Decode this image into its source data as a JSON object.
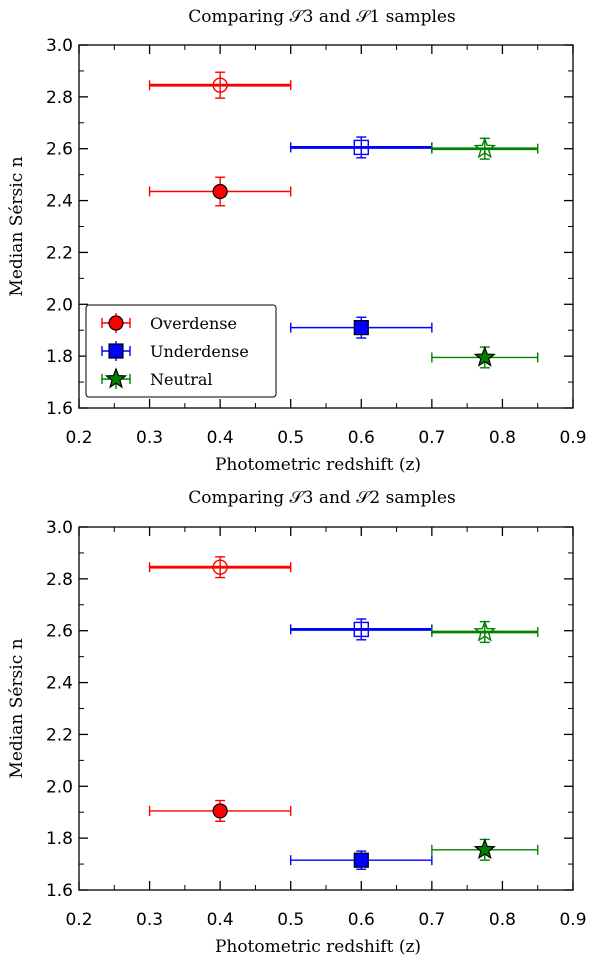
{
  "chart_data": [
    {
      "type": "scatter",
      "title": "Comparing 𝒮3 and 𝒮1 samples",
      "xlabel": "Photometric redshift (z)",
      "ylabel": "Median Sérsic n",
      "xlim": [
        0.2,
        0.9
      ],
      "ylim": [
        1.6,
        3.0
      ],
      "xticks": [
        "0.2",
        "0.3",
        "0.4",
        "0.5",
        "0.6",
        "0.7",
        "0.8",
        "0.9"
      ],
      "yticks": [
        "1.6",
        "1.8",
        "2.0",
        "2.2",
        "2.4",
        "2.6",
        "2.8",
        "3.0"
      ],
      "grid": false,
      "legend_position": "lower-left",
      "series": [
        {
          "name": "Overdense",
          "color": "#ff0000",
          "marker": "circle",
          "points": [
            {
              "x": 0.4,
              "y": 2.845,
              "xerr": [
                0.3,
                0.5
              ],
              "yerr": 0.05,
              "filled": false
            },
            {
              "x": 0.4,
              "y": 2.435,
              "xerr": [
                0.3,
                0.5
              ],
              "yerr": 0.055,
              "filled": true
            }
          ]
        },
        {
          "name": "Underdense",
          "color": "#0000ff",
          "marker": "square",
          "points": [
            {
              "x": 0.6,
              "y": 2.605,
              "xerr": [
                0.5,
                0.7
              ],
              "yerr": 0.04,
              "filled": false
            },
            {
              "x": 0.6,
              "y": 1.91,
              "xerr": [
                0.5,
                0.7
              ],
              "yerr": 0.04,
              "filled": true
            }
          ]
        },
        {
          "name": "Neutral",
          "color": "#008000",
          "marker": "star",
          "points": [
            {
              "x": 0.775,
              "y": 2.6,
              "xerr": [
                0.7,
                0.85
              ],
              "yerr": 0.04,
              "filled": false
            },
            {
              "x": 0.775,
              "y": 1.795,
              "xerr": [
                0.7,
                0.85
              ],
              "yerr": 0.04,
              "filled": true
            }
          ]
        }
      ]
    },
    {
      "type": "scatter",
      "title": "Comparing 𝒮3 and 𝒮2 samples",
      "xlabel": "Photometric redshift (z)",
      "ylabel": "Median Sérsic n",
      "xlim": [
        0.2,
        0.9
      ],
      "ylim": [
        1.6,
        3.0
      ],
      "xticks": [
        "0.2",
        "0.3",
        "0.4",
        "0.5",
        "0.6",
        "0.7",
        "0.8",
        "0.9"
      ],
      "yticks": [
        "1.6",
        "1.8",
        "2.0",
        "2.2",
        "2.4",
        "2.6",
        "2.8",
        "3.0"
      ],
      "grid": false,
      "series": [
        {
          "name": "Overdense",
          "color": "#ff0000",
          "marker": "circle",
          "points": [
            {
              "x": 0.4,
              "y": 2.845,
              "xerr": [
                0.3,
                0.5
              ],
              "yerr": 0.04,
              "filled": false
            },
            {
              "x": 0.4,
              "y": 1.905,
              "xerr": [
                0.3,
                0.5
              ],
              "yerr": 0.04,
              "filled": true
            }
          ]
        },
        {
          "name": "Underdense",
          "color": "#0000ff",
          "marker": "square",
          "points": [
            {
              "x": 0.6,
              "y": 2.605,
              "xerr": [
                0.5,
                0.7
              ],
              "yerr": 0.04,
              "filled": false
            },
            {
              "x": 0.6,
              "y": 1.715,
              "xerr": [
                0.5,
                0.7
              ],
              "yerr": 0.035,
              "filled": true
            }
          ]
        },
        {
          "name": "Neutral",
          "color": "#008000",
          "marker": "star",
          "points": [
            {
              "x": 0.775,
              "y": 2.595,
              "xerr": [
                0.7,
                0.85
              ],
              "yerr": 0.04,
              "filled": false
            },
            {
              "x": 0.775,
              "y": 1.755,
              "xerr": [
                0.7,
                0.85
              ],
              "yerr": 0.04,
              "filled": true
            }
          ]
        }
      ]
    }
  ]
}
